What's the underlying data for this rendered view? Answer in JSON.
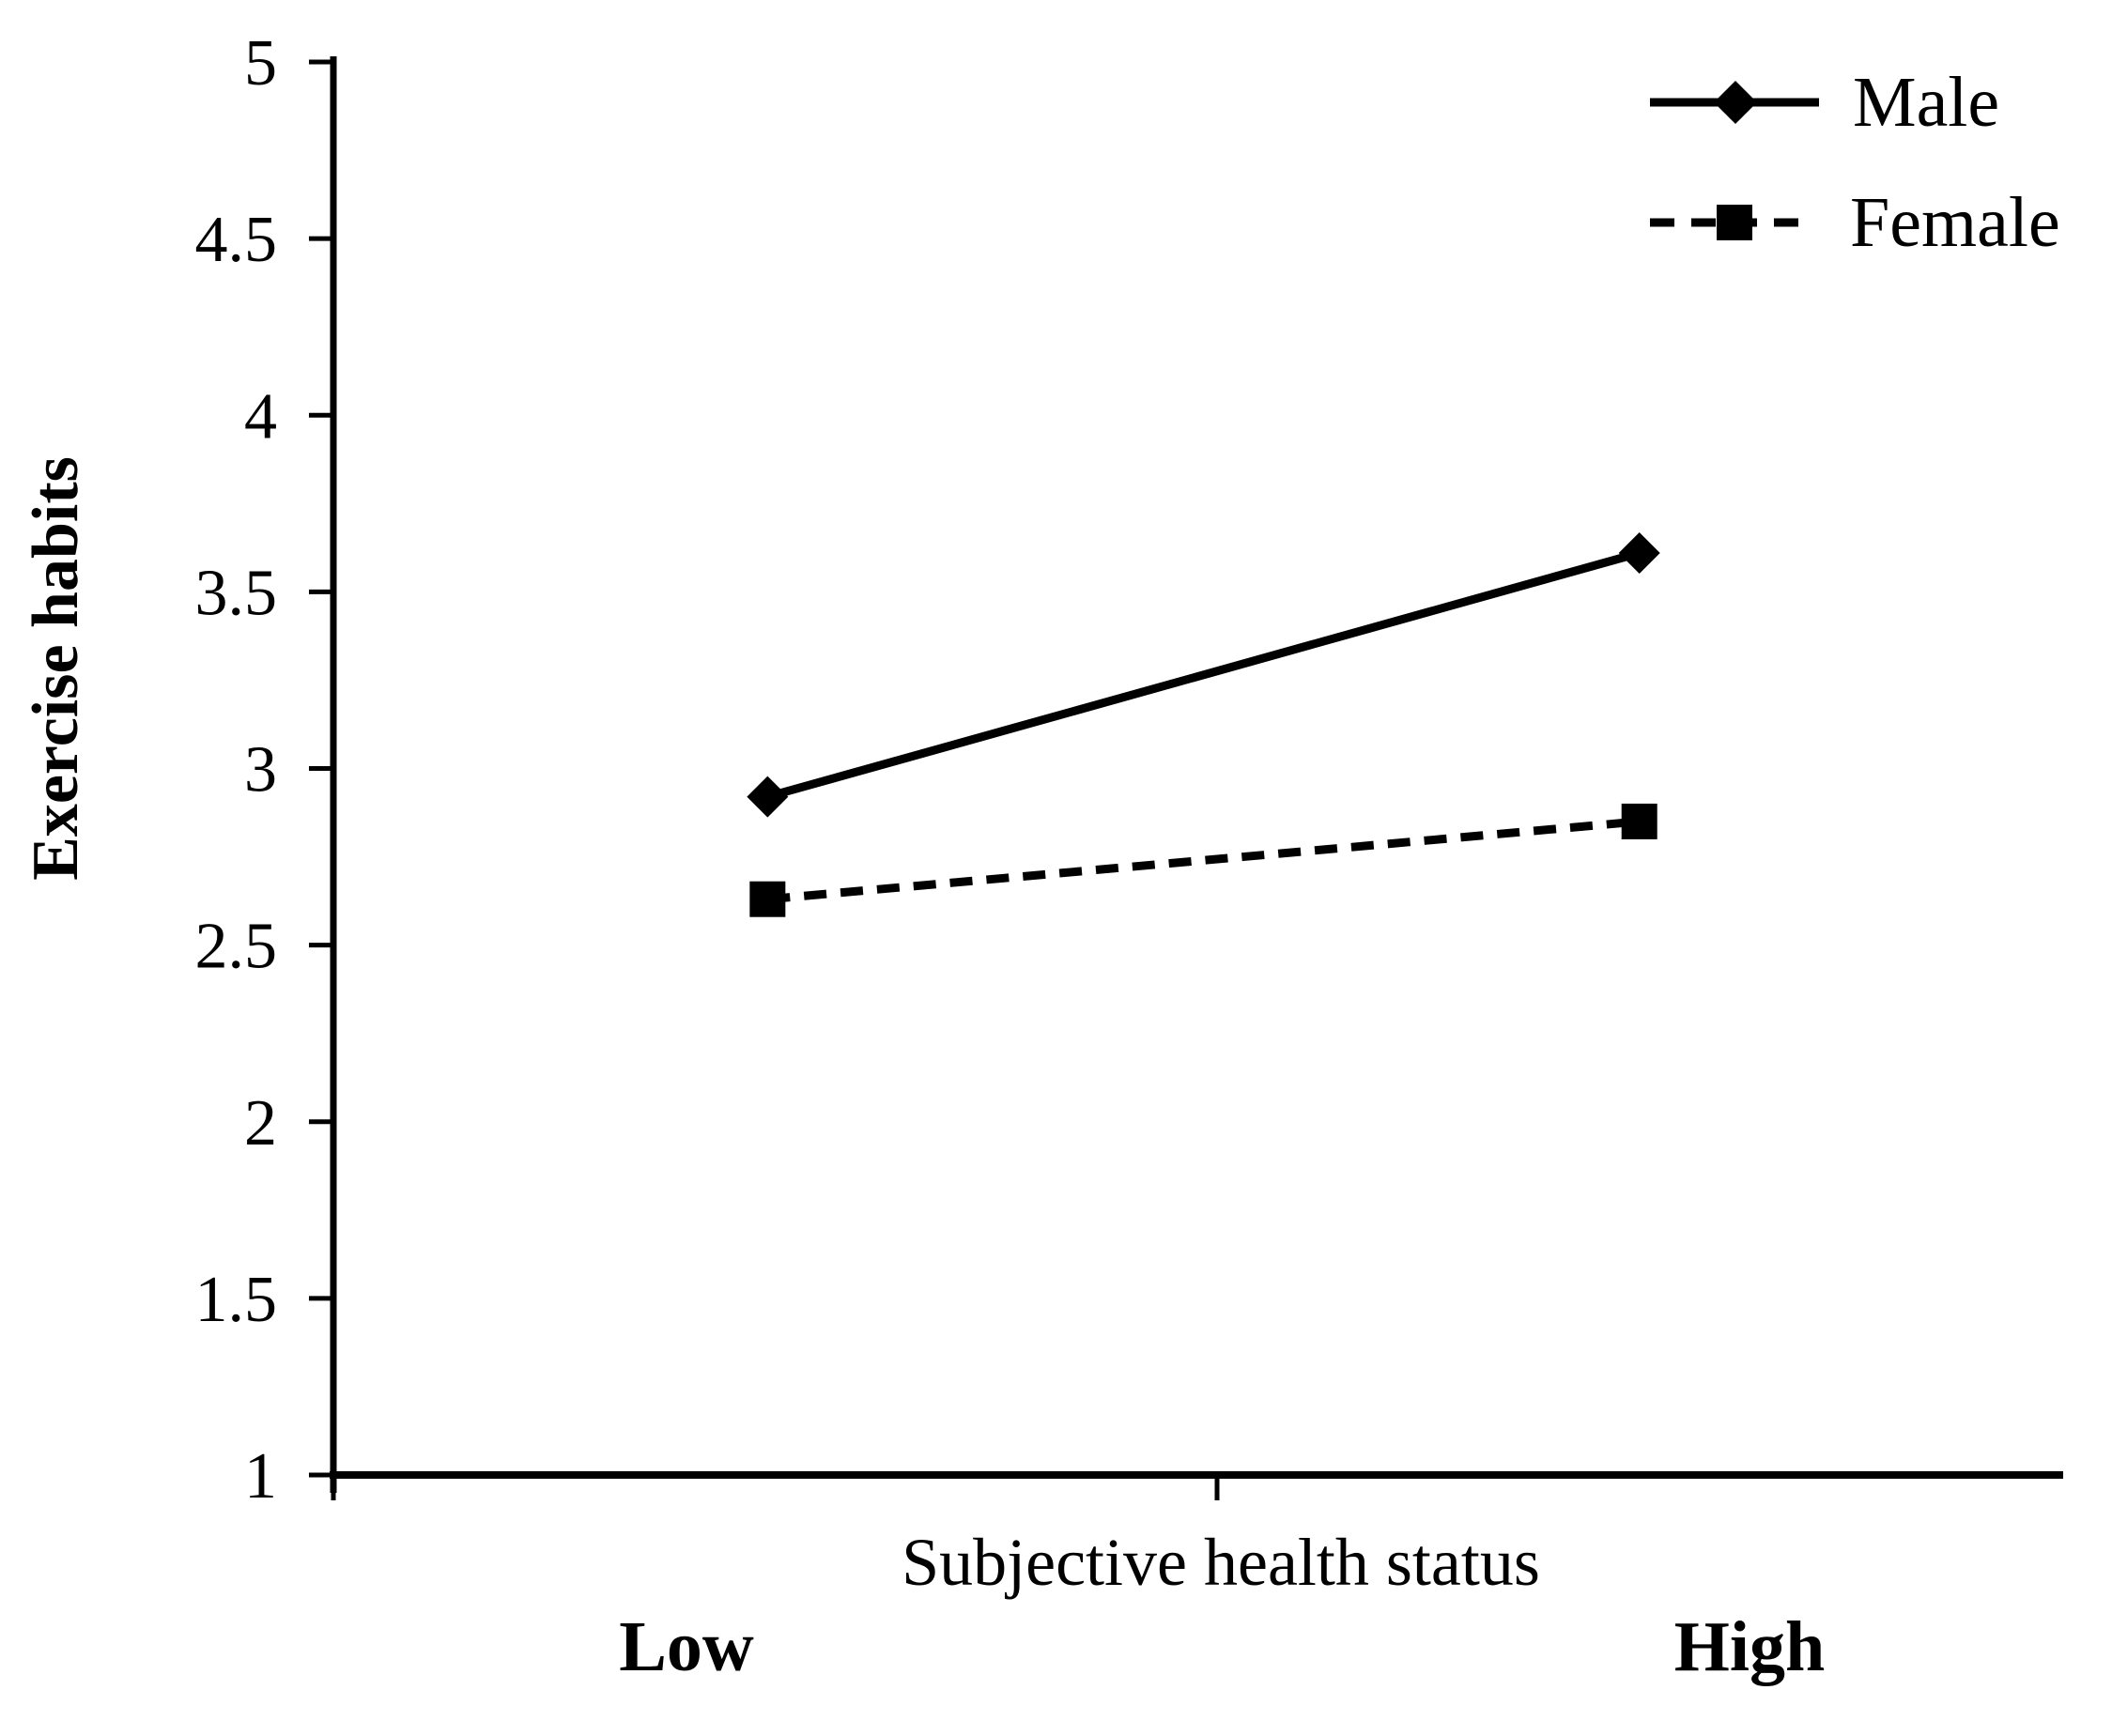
{
  "chart_data": {
    "type": "line",
    "title": "",
    "xlabel": "Subjective health status",
    "ylabel": "Exercise habits",
    "categories": [
      "Low",
      "High"
    ],
    "series": [
      {
        "name": "Male",
        "values": [
          2.92,
          3.61
        ],
        "line_style": "solid",
        "marker": "diamond"
      },
      {
        "name": "Female",
        "values": [
          2.63,
          2.85
        ],
        "line_style": "dashed",
        "marker": "square"
      }
    ],
    "ylim": [
      1,
      5
    ],
    "ytick_values": [
      5,
      4.5,
      4,
      3.5,
      3,
      2.5,
      2,
      1.5,
      1
    ],
    "ytick_labels": [
      "5",
      "4.5",
      "4",
      "3.5",
      "3",
      "2.5",
      "2",
      "1.5",
      "1"
    ],
    "grid": false,
    "legend_position": "top-right",
    "ink_color": "#000000",
    "background_color": "#ffffff"
  }
}
